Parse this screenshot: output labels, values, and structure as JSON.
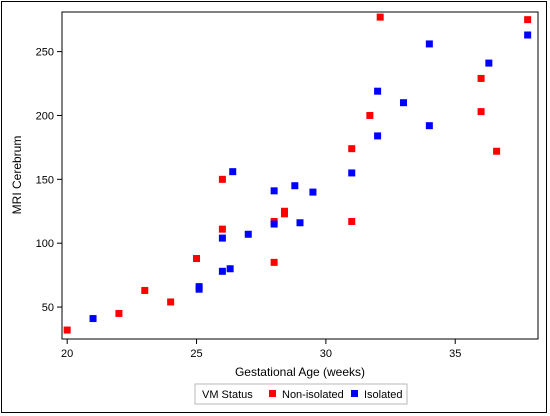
{
  "chart_data": {
    "type": "scatter",
    "title": "",
    "xlabel": "Gestational Age (weeks)",
    "ylabel": "MRI Cerebrum",
    "xlim": [
      19.8,
      38.2
    ],
    "ylim": [
      25,
      281
    ],
    "xticks": [
      20,
      25,
      30,
      35
    ],
    "yticks": [
      50,
      100,
      150,
      200,
      250
    ],
    "grid": false,
    "legend": {
      "title": "VM Status",
      "placement": "bottom-center"
    },
    "series": [
      {
        "name": "Non-isolated",
        "color": "#ff0000",
        "marker": "square",
        "points": [
          [
            20,
            32
          ],
          [
            22,
            45
          ],
          [
            23,
            63
          ],
          [
            24,
            54
          ],
          [
            25,
            88
          ],
          [
            26,
            150
          ],
          [
            26,
            111
          ],
          [
            28,
            117
          ],
          [
            28,
            85
          ],
          [
            28.4,
            125
          ],
          [
            28.4,
            123
          ],
          [
            31,
            174
          ],
          [
            31,
            117
          ],
          [
            31.7,
            200
          ],
          [
            32.1,
            277
          ],
          [
            36,
            229
          ],
          [
            36,
            203
          ],
          [
            36.6,
            172
          ],
          [
            37.8,
            275
          ]
        ]
      },
      {
        "name": "Isolated",
        "color": "#0000ff",
        "marker": "square",
        "points": [
          [
            21,
            41
          ],
          [
            25.1,
            66
          ],
          [
            25.1,
            64
          ],
          [
            26,
            104
          ],
          [
            26,
            78
          ],
          [
            26.3,
            80
          ],
          [
            26.4,
            156
          ],
          [
            27,
            107
          ],
          [
            28,
            141
          ],
          [
            28,
            115
          ],
          [
            28.8,
            145
          ],
          [
            29,
            116
          ],
          [
            29.5,
            140
          ],
          [
            31,
            155
          ],
          [
            32,
            219
          ],
          [
            32,
            184
          ],
          [
            33,
            210
          ],
          [
            34,
            256
          ],
          [
            34,
            192
          ],
          [
            36.3,
            241
          ],
          [
            37.8,
            263
          ]
        ]
      }
    ]
  }
}
